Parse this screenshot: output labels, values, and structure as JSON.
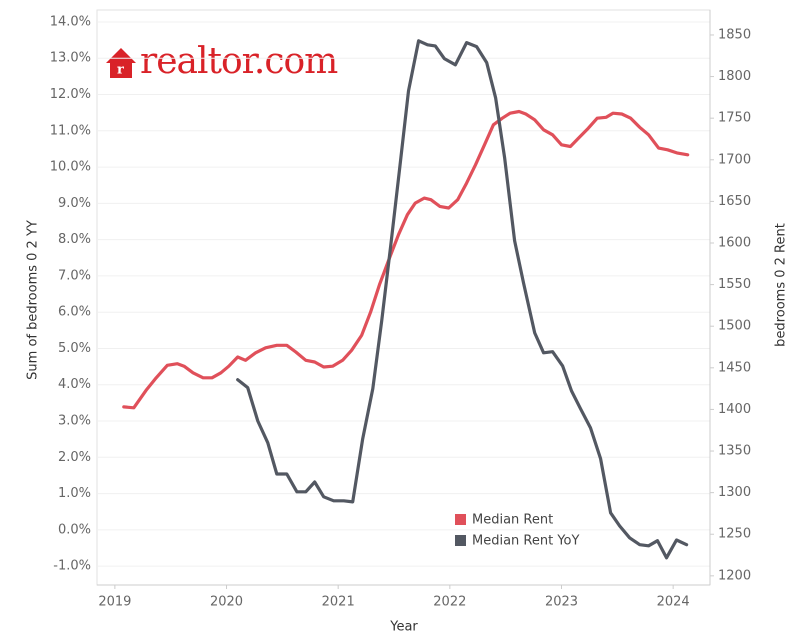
{
  "logo": "realtor.com",
  "chart_data": {
    "type": "line",
    "x_label": "Year",
    "y_label": "Sum of bedrooms 0 2 YY",
    "y2_label": "bedrooms 0 2 Rent",
    "xlim": [
      2018.84,
      2024.33
    ],
    "xticks": [
      2019,
      2020,
      2021,
      2022,
      2023,
      2024
    ],
    "ylim": [
      -1.52,
      14.33
    ],
    "yticks": [
      {
        "value": -1,
        "label": "-1.0%"
      },
      {
        "value": 0,
        "label": "0.0%"
      },
      {
        "value": 1,
        "label": "1.0%"
      },
      {
        "value": 2,
        "label": "2.0%"
      },
      {
        "value": 3,
        "label": "3.0%"
      },
      {
        "value": 4,
        "label": "4.0%"
      },
      {
        "value": 5,
        "label": "5.0%"
      },
      {
        "value": 6,
        "label": "6.0%"
      },
      {
        "value": 7,
        "label": "7.0%"
      },
      {
        "value": 8,
        "label": "8.0%"
      },
      {
        "value": 9,
        "label": "9.0%"
      },
      {
        "value": 10,
        "label": "10.0%"
      },
      {
        "value": 11,
        "label": "11.0%"
      },
      {
        "value": 12,
        "label": "12.0%"
      },
      {
        "value": 13,
        "label": "13.0%"
      },
      {
        "value": 14,
        "label": "14.0%"
      }
    ],
    "y2lim": [
      1189,
      1880
    ],
    "y2ticks": [
      1200,
      1250,
      1300,
      1350,
      1400,
      1450,
      1500,
      1550,
      1600,
      1650,
      1700,
      1750,
      1800,
      1850
    ],
    "grid": true,
    "series": [
      {
        "name": "Median Rent",
        "color": "#e0505a",
        "axis": "y2",
        "x": [
          2019.08,
          2019.17,
          2019.28,
          2019.37,
          2019.47,
          2019.56,
          2019.62,
          2019.7,
          2019.79,
          2019.87,
          2019.95,
          2020.02,
          2020.1,
          2020.17,
          2020.26,
          2020.35,
          2020.45,
          2020.54,
          2020.62,
          2020.71,
          2020.79,
          2020.87,
          2020.95,
          2021.04,
          2021.12,
          2021.21,
          2021.29,
          2021.37,
          2021.46,
          2021.54,
          2021.62,
          2021.69,
          2021.77,
          2021.83,
          2021.91,
          2021.99,
          2022.07,
          2022.15,
          2022.23,
          2022.31,
          2022.39,
          2022.47,
          2022.54,
          2022.62,
          2022.68,
          2022.76,
          2022.84,
          2022.92,
          2023.0,
          2023.08,
          2023.16,
          2023.24,
          2023.32,
          2023.4,
          2023.46,
          2023.54,
          2023.62,
          2023.7,
          2023.78,
          2023.87,
          2023.95,
          2024.04,
          2024.13
        ],
        "values": [
          1403,
          1402,
          1423,
          1438,
          1453,
          1455,
          1452,
          1444,
          1438,
          1438,
          1444,
          1452,
          1463,
          1459,
          1468,
          1474,
          1477,
          1477,
          1469,
          1459,
          1457,
          1451,
          1452,
          1459,
          1471,
          1489,
          1517,
          1550,
          1582,
          1610,
          1634,
          1648,
          1654,
          1652,
          1644,
          1642,
          1652,
          1672,
          1694,
          1718,
          1742,
          1750,
          1756,
          1758,
          1755,
          1748,
          1736,
          1730,
          1718,
          1716,
          1727,
          1738,
          1750,
          1751,
          1756,
          1755,
          1750,
          1739,
          1730,
          1714,
          1712,
          1708,
          1706
        ]
      },
      {
        "name": "Median Rent YoY",
        "color": "#535862",
        "x": [
          2020.1,
          2020.19,
          2020.28,
          2020.37,
          2020.45,
          2020.54,
          2020.63,
          2020.71,
          2020.79,
          2020.87,
          2020.96,
          2021.05,
          2021.13,
          2021.22,
          2021.31,
          2021.39,
          2021.47,
          2021.55,
          2021.63,
          2021.72,
          2021.8,
          2021.87,
          2021.95,
          2022.05,
          2022.15,
          2022.24,
          2022.33,
          2022.41,
          2022.49,
          2022.58,
          2022.66,
          2022.76,
          2022.84,
          2022.92,
          2023.01,
          2023.09,
          2023.17,
          2023.26,
          2023.35,
          2023.44,
          2023.52,
          2023.61,
          2023.7,
          2023.78,
          2023.86,
          2023.94,
          2024.03,
          2024.12
        ],
        "values": [
          4.14,
          3.92,
          3.0,
          2.4,
          1.54,
          1.54,
          1.05,
          1.05,
          1.32,
          0.91,
          0.8,
          0.8,
          0.77,
          2.51,
          3.89,
          5.76,
          7.83,
          9.95,
          12.1,
          13.48,
          13.37,
          13.34,
          12.99,
          12.82,
          13.43,
          13.32,
          12.88,
          11.91,
          10.26,
          7.97,
          6.81,
          5.43,
          4.88,
          4.91,
          4.52,
          3.83,
          3.34,
          2.81,
          1.96,
          0.47,
          0.11,
          -0.22,
          -0.41,
          -0.44,
          -0.3,
          -0.77,
          -0.28,
          -0.41
        ]
      }
    ]
  }
}
